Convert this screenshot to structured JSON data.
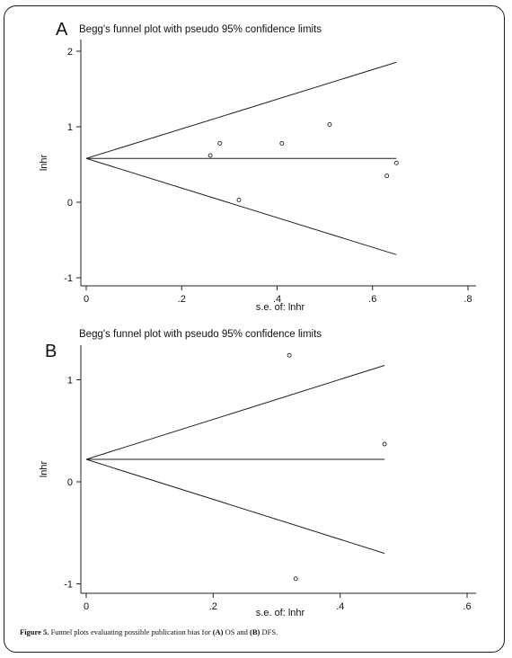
{
  "chart_data": [
    {
      "type": "scatter",
      "panel": "A",
      "title": "Begg's funnel plot with pseudo 95% confidence limits",
      "xlabel": "s.e. of: lnhr",
      "ylabel": "lnhr",
      "xlim": [
        0,
        0.8
      ],
      "ylim": [
        -1,
        2
      ],
      "xticks": [
        "0",
        ".2",
        ".4",
        ".6",
        ".8"
      ],
      "yticks": [
        "-1",
        "0",
        "1",
        "2"
      ],
      "pooled_estimate": 0.58,
      "funnel_max_se": 0.65,
      "points": [
        {
          "x": 0.26,
          "y": 0.62
        },
        {
          "x": 0.28,
          "y": 0.78
        },
        {
          "x": 0.32,
          "y": 0.03
        },
        {
          "x": 0.41,
          "y": 0.78
        },
        {
          "x": 0.51,
          "y": 1.03
        },
        {
          "x": 0.63,
          "y": 0.35
        },
        {
          "x": 0.65,
          "y": 0.52
        }
      ]
    },
    {
      "type": "scatter",
      "panel": "B",
      "title": "Begg's funnel plot with pseudo 95% confidence limits",
      "xlabel": "s.e. of: lnhr",
      "ylabel": "lnhr",
      "xlim": [
        0,
        0.6
      ],
      "ylim": [
        -1,
        1.3
      ],
      "xticks": [
        "0",
        ".2",
        ".4",
        ".6"
      ],
      "yticks": [
        "-1",
        "0",
        "1"
      ],
      "pooled_estimate": 0.22,
      "funnel_max_se": 0.47,
      "points": [
        {
          "x": 0.32,
          "y": 1.24
        },
        {
          "x": 0.47,
          "y": 0.37
        },
        {
          "x": 0.33,
          "y": -0.95
        }
      ]
    }
  ],
  "caption": {
    "label": "Figure 5.",
    "text_1": " Funnel plots evaluating possible publication bias for ",
    "bold_a": "(A)",
    "text_2": " OS and ",
    "bold_b": "(B)",
    "text_3": " DFS."
  }
}
